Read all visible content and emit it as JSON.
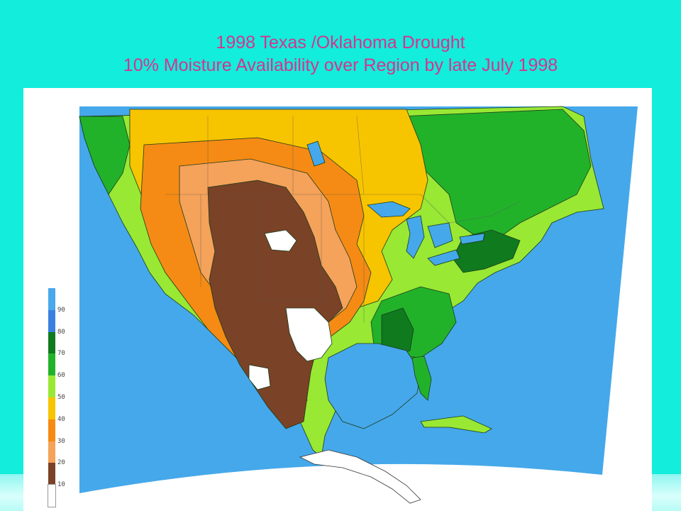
{
  "title": {
    "line1": "1998 Texas /Oklahoma Drought",
    "line2": "10% Moisture Availability over Region by late July 1998"
  },
  "legend": {
    "labels": [
      "90",
      "80",
      "70",
      "60",
      "50",
      "40",
      "30",
      "20",
      "10"
    ],
    "colors": [
      "#4aa8ec",
      "#3a7fe0",
      "#0f7a1e",
      "#22b22a",
      "#99e834",
      "#f7c400",
      "#f58b14",
      "#f5a25a",
      "#7a4226",
      "#ffffff"
    ]
  },
  "map_colors": {
    "ocean": "#45a8ea",
    "very_dry": "#7a4226",
    "dry": "#f5a25a",
    "orange": "#f58b14",
    "yellow": "#f7c400",
    "lime": "#99e834",
    "green": "#22b22a",
    "dark_green": "#0f7a1e",
    "blue": "#3a7fe0",
    "none": "#ffffff"
  }
}
